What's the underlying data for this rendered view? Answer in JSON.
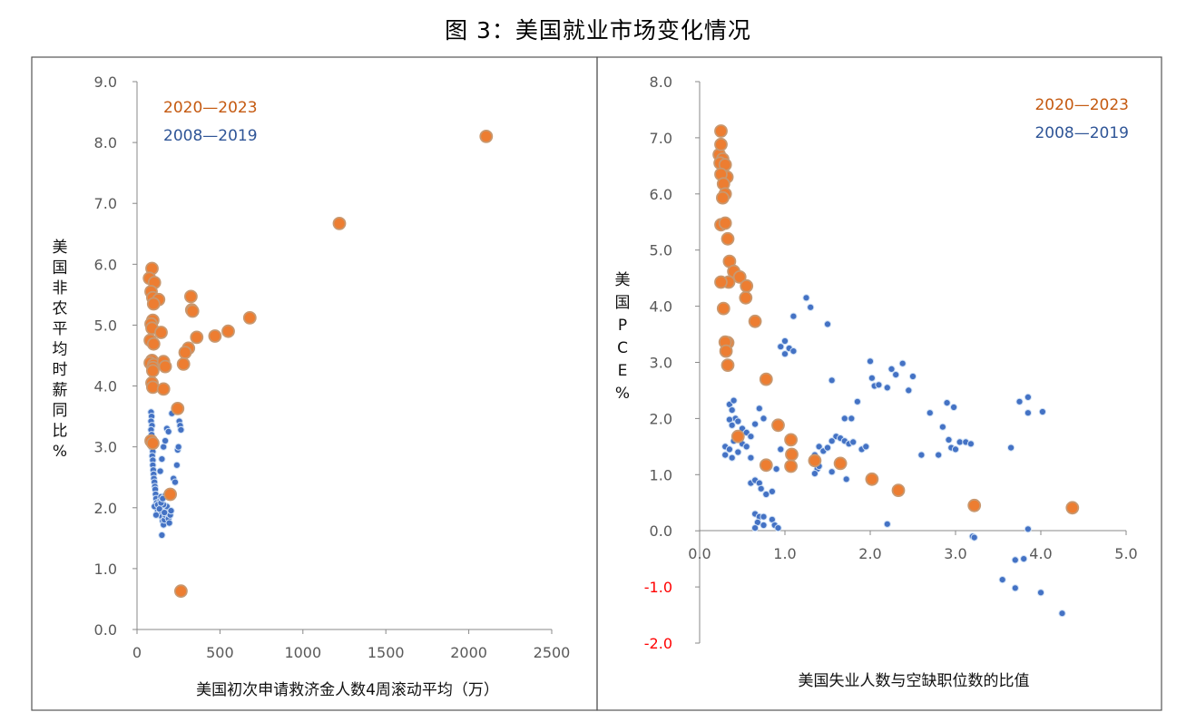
{
  "figure_title": "图 3：美国就业市场变化情况",
  "legend_colors": {
    "2020—2023": "#C55A11",
    "2008—2019": "#2F5597"
  },
  "chart_data": [
    {
      "type": "scatter",
      "xlabel": "美国初次申请救济金人数4周滚动平均（万）",
      "ylabel": "美国非农平均时薪同比 %",
      "xlim": [
        0,
        2500
      ],
      "ylim": [
        0,
        9
      ],
      "x_ticks": [
        "0",
        "500",
        "1000",
        "1500",
        "2000",
        "2500"
      ],
      "y_ticks": [
        "0.0",
        "1.0",
        "2.0",
        "3.0",
        "4.0",
        "5.0",
        "6.0",
        "7.0",
        "8.0",
        "9.0"
      ],
      "legend": [
        "2020—2023",
        "2008—2019"
      ],
      "legend_position": "top-left",
      "series": [
        {
          "name": "2020—2023",
          "color": "#ED7D31",
          "points": [
            [
              2105,
              8.1
            ],
            [
              1220,
              6.67
            ],
            [
              90,
              5.93
            ],
            [
              75,
              5.77
            ],
            [
              105,
              5.7
            ],
            [
              85,
              5.55
            ],
            [
              95,
              5.45
            ],
            [
              130,
              5.42
            ],
            [
              100,
              5.35
            ],
            [
              325,
              5.47
            ],
            [
              330,
              5.25
            ],
            [
              335,
              5.23
            ],
            [
              680,
              5.12
            ],
            [
              95,
              5.08
            ],
            [
              85,
              5.02
            ],
            [
              90,
              4.95
            ],
            [
              145,
              4.88
            ],
            [
              550,
              4.9
            ],
            [
              470,
              4.82
            ],
            [
              360,
              4.8
            ],
            [
              80,
              4.75
            ],
            [
              100,
              4.69
            ],
            [
              310,
              4.62
            ],
            [
              290,
              4.55
            ],
            [
              90,
              4.42
            ],
            [
              80,
              4.38
            ],
            [
              100,
              4.35
            ],
            [
              160,
              4.4
            ],
            [
              95,
              4.3
            ],
            [
              170,
              4.32
            ],
            [
              280,
              4.36
            ],
            [
              95,
              4.25
            ],
            [
              90,
              4.05
            ],
            [
              95,
              3.98
            ],
            [
              160,
              3.95
            ],
            [
              245,
              3.63
            ],
            [
              85,
              3.1
            ],
            [
              95,
              3.06
            ],
            [
              200,
              2.22
            ],
            [
              265,
              0.63
            ]
          ]
        },
        {
          "name": "2008—2019",
          "color": "#4472C4",
          "points": [
            [
              85,
              3.57
            ],
            [
              88,
              3.5
            ],
            [
              85,
              3.42
            ],
            [
              90,
              3.35
            ],
            [
              85,
              3.28
            ],
            [
              88,
              3.2
            ],
            [
              90,
              3.12
            ],
            [
              92,
              3.05
            ],
            [
              90,
              2.98
            ],
            [
              95,
              2.92
            ],
            [
              92,
              2.85
            ],
            [
              95,
              2.78
            ],
            [
              95,
              2.7
            ],
            [
              98,
              2.62
            ],
            [
              100,
              2.55
            ],
            [
              102,
              2.48
            ],
            [
              105,
              2.42
            ],
            [
              108,
              2.35
            ],
            [
              110,
              2.3
            ],
            [
              112,
              2.22
            ],
            [
              115,
              2.15
            ],
            [
              118,
              2.08
            ],
            [
              120,
              2.02
            ],
            [
              125,
              1.95
            ],
            [
              130,
              1.9
            ],
            [
              140,
              2.12
            ],
            [
              145,
              2.18
            ],
            [
              150,
              1.85
            ],
            [
              155,
              1.78
            ],
            [
              160,
              1.72
            ],
            [
              165,
              1.8
            ],
            [
              170,
              1.88
            ],
            [
              175,
              1.95
            ],
            [
              180,
              2.02
            ],
            [
              185,
              1.9
            ],
            [
              190,
              1.82
            ],
            [
              195,
              1.75
            ],
            [
              200,
              1.88
            ],
            [
              205,
              1.95
            ],
            [
              150,
              1.55
            ],
            [
              160,
              2.05
            ],
            [
              170,
              2.2
            ],
            [
              140,
              2.6
            ],
            [
              150,
              2.8
            ],
            [
              160,
              3.0
            ],
            [
              170,
              3.1
            ],
            [
              180,
              3.3
            ],
            [
              190,
              3.25
            ],
            [
              210,
              3.55
            ],
            [
              220,
              2.48
            ],
            [
              230,
              2.42
            ],
            [
              240,
              2.7
            ],
            [
              245,
              2.95
            ],
            [
              250,
              3.0
            ],
            [
              255,
              3.42
            ],
            [
              260,
              3.35
            ],
            [
              265,
              3.28
            ],
            [
              105,
              2.02
            ],
            [
              115,
              1.88
            ],
            [
              125,
              2.05
            ],
            [
              135,
              1.98
            ],
            [
              145,
              2.08
            ],
            [
              155,
              2.15
            ],
            [
              165,
              1.92
            ]
          ]
        }
      ]
    },
    {
      "type": "scatter",
      "xlabel": "美国失业人数与空缺职位数的比值",
      "ylabel": "美国PCE %",
      "xlim": [
        0,
        5
      ],
      "ylim": [
        -2,
        8
      ],
      "x_ticks": [
        "0.0",
        "1.0",
        "2.0",
        "3.0",
        "4.0",
        "5.0"
      ],
      "y_ticks": [
        "-2.0",
        "-1.0",
        "0.0",
        "1.0",
        "2.0",
        "3.0",
        "4.0",
        "5.0",
        "6.0",
        "7.0",
        "8.0"
      ],
      "legend": [
        "2020—2023",
        "2008—2019"
      ],
      "legend_position": "top-right",
      "series": [
        {
          "name": "2020—2023",
          "color": "#ED7D31",
          "points": [
            [
              0.25,
              7.12
            ],
            [
              0.23,
              6.7
            ],
            [
              0.25,
              6.88
            ],
            [
              0.27,
              6.62
            ],
            [
              0.24,
              6.55
            ],
            [
              0.3,
              6.52
            ],
            [
              0.32,
              6.3
            ],
            [
              0.25,
              6.35
            ],
            [
              0.28,
              6.18
            ],
            [
              0.3,
              6.0
            ],
            [
              0.27,
              5.93
            ],
            [
              0.25,
              5.45
            ],
            [
              0.3,
              5.48
            ],
            [
              0.33,
              5.2
            ],
            [
              0.35,
              4.8
            ],
            [
              0.4,
              4.62
            ],
            [
              0.34,
              4.43
            ],
            [
              0.25,
              4.43
            ],
            [
              0.47,
              4.52
            ],
            [
              0.55,
              4.36
            ],
            [
              0.54,
              4.15
            ],
            [
              0.28,
              3.96
            ],
            [
              0.65,
              3.73
            ],
            [
              0.33,
              3.35
            ],
            [
              0.3,
              3.36
            ],
            [
              0.31,
              3.2
            ],
            [
              0.33,
              2.95
            ],
            [
              0.78,
              2.7
            ],
            [
              0.92,
              1.88
            ],
            [
              0.45,
              1.68
            ],
            [
              1.07,
              1.62
            ],
            [
              1.08,
              1.36
            ],
            [
              0.78,
              1.17
            ],
            [
              1.35,
              1.25
            ],
            [
              1.65,
              1.2
            ],
            [
              1.07,
              1.15
            ],
            [
              2.02,
              0.92
            ],
            [
              2.33,
              0.72
            ],
            [
              3.22,
              0.45
            ],
            [
              4.37,
              0.41
            ]
          ]
        },
        {
          "name": "2008—2019",
          "color": "#4472C4",
          "points": [
            [
              1.25,
              4.15
            ],
            [
              1.3,
              3.98
            ],
            [
              1.5,
              3.68
            ],
            [
              1.1,
              3.82
            ],
            [
              1.0,
              3.38
            ],
            [
              1.05,
              3.25
            ],
            [
              0.95,
              3.28
            ],
            [
              1.1,
              3.2
            ],
            [
              1.0,
              3.15
            ],
            [
              0.35,
              2.25
            ],
            [
              0.4,
              2.32
            ],
            [
              0.38,
              2.15
            ],
            [
              0.42,
              2.0
            ],
            [
              0.35,
              1.98
            ],
            [
              0.38,
              1.88
            ],
            [
              0.45,
              1.95
            ],
            [
              0.5,
              1.82
            ],
            [
              0.55,
              1.75
            ],
            [
              0.6,
              1.68
            ],
            [
              0.65,
              1.9
            ],
            [
              0.7,
              2.18
            ],
            [
              0.75,
              2.0
            ],
            [
              0.3,
              1.5
            ],
            [
              0.35,
              1.45
            ],
            [
              0.4,
              1.6
            ],
            [
              0.45,
              1.4
            ],
            [
              0.5,
              1.55
            ],
            [
              0.55,
              1.5
            ],
            [
              0.3,
              1.35
            ],
            [
              0.38,
              1.3
            ],
            [
              0.6,
              1.3
            ],
            [
              0.6,
              0.85
            ],
            [
              0.65,
              0.9
            ],
            [
              0.7,
              0.85
            ],
            [
              0.72,
              0.75
            ],
            [
              0.78,
              0.65
            ],
            [
              0.85,
              0.7
            ],
            [
              0.9,
              1.1
            ],
            [
              0.95,
              1.45
            ],
            [
              0.65,
              0.3
            ],
            [
              0.7,
              0.25
            ],
            [
              0.68,
              0.15
            ],
            [
              0.65,
              0.05
            ],
            [
              0.75,
              0.25
            ],
            [
              0.85,
              0.2
            ],
            [
              0.88,
              0.1
            ],
            [
              0.92,
              0.05
            ],
            [
              0.75,
              0.1
            ],
            [
              1.55,
              2.68
            ],
            [
              1.85,
              2.3
            ],
            [
              2.0,
              3.02
            ],
            [
              2.02,
              2.72
            ],
            [
              2.05,
              2.58
            ],
            [
              2.1,
              2.6
            ],
            [
              2.2,
              2.55
            ],
            [
              2.25,
              2.88
            ],
            [
              2.3,
              2.78
            ],
            [
              2.38,
              2.98
            ],
            [
              2.45,
              2.5
            ],
            [
              2.5,
              2.75
            ],
            [
              1.6,
              1.68
            ],
            [
              1.7,
              2.0
            ],
            [
              1.78,
              2.0
            ],
            [
              1.9,
              1.45
            ],
            [
              1.95,
              1.5
            ],
            [
              2.6,
              1.35
            ],
            [
              2.7,
              2.1
            ],
            [
              2.8,
              1.35
            ],
            [
              2.85,
              1.85
            ],
            [
              2.9,
              2.28
            ],
            [
              2.92,
              1.62
            ],
            [
              2.95,
              1.48
            ],
            [
              2.98,
              2.2
            ],
            [
              3.0,
              1.45
            ],
            [
              3.05,
              1.58
            ],
            [
              3.12,
              1.58
            ],
            [
              3.18,
              1.55
            ],
            [
              1.55,
              1.6
            ],
            [
              1.65,
              1.65
            ],
            [
              1.7,
              1.6
            ],
            [
              1.75,
              1.55
            ],
            [
              1.8,
              1.58
            ],
            [
              1.4,
              1.5
            ],
            [
              1.45,
              1.42
            ],
            [
              1.5,
              1.48
            ],
            [
              1.35,
              1.35
            ],
            [
              1.38,
              1.1
            ],
            [
              1.4,
              1.15
            ],
            [
              1.55,
              1.05
            ],
            [
              1.72,
              0.92
            ],
            [
              1.35,
              1.02
            ],
            [
              2.05,
              0.95
            ],
            [
              2.2,
              0.12
            ],
            [
              3.2,
              -0.1
            ],
            [
              3.22,
              -0.12
            ],
            [
              3.55,
              -0.87
            ],
            [
              3.7,
              -0.52
            ],
            [
              3.7,
              -1.02
            ],
            [
              3.8,
              -0.5
            ],
            [
              3.65,
              1.48
            ],
            [
              3.75,
              2.3
            ],
            [
              3.85,
              2.1
            ],
            [
              3.85,
              2.38
            ],
            [
              4.02,
              2.12
            ],
            [
              4.0,
              -1.1
            ],
            [
              4.25,
              -1.47
            ],
            [
              3.85,
              0.03
            ]
          ]
        }
      ]
    }
  ]
}
